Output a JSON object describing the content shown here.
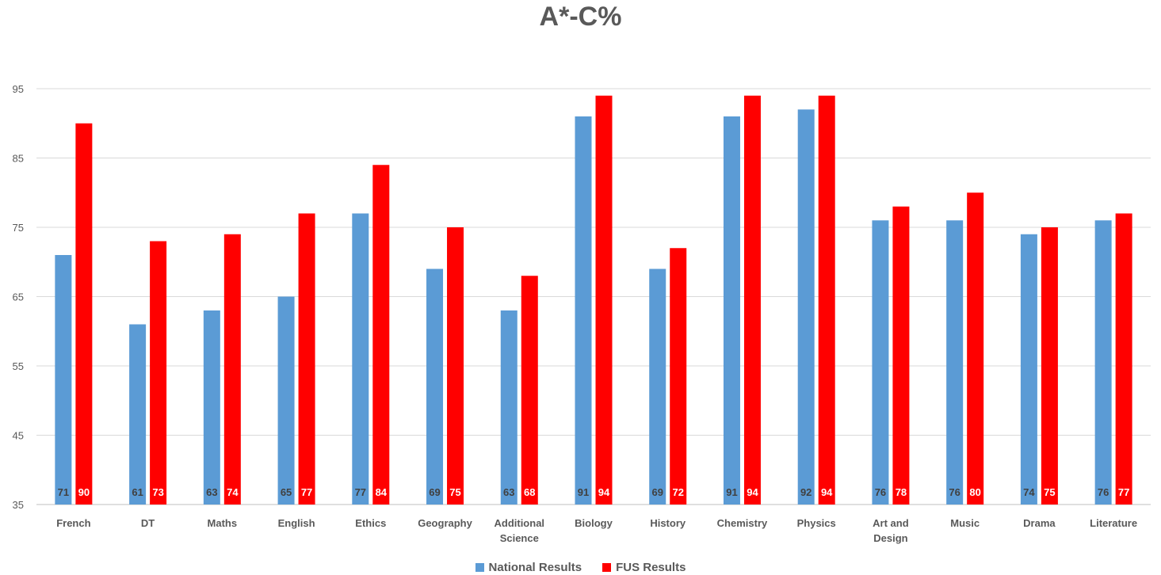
{
  "chart_data": {
    "type": "bar",
    "title": "A*-C%",
    "xlabel": "",
    "ylabel": "",
    "ylim": [
      35,
      95
    ],
    "yticks": [
      "95",
      "85",
      "75",
      "65",
      "55",
      "45",
      "35"
    ],
    "grid": true,
    "legend_position": "bottom",
    "categories": [
      "French",
      "DT",
      "Maths",
      "English",
      "Ethics",
      "Geography",
      "Additional Science",
      "Biology",
      "History",
      "Chemistry",
      "Physics",
      "Art and Design",
      "Music",
      "Drama",
      "Literature"
    ],
    "series": [
      {
        "name": "National Results",
        "color": "#5b9bd5",
        "label_color": "#404040",
        "values": [
          71,
          61,
          63,
          65,
          77,
          69,
          63,
          91,
          69,
          91,
          92,
          76,
          76,
          74,
          76
        ]
      },
      {
        "name": "FUS Results",
        "color": "#ff0000",
        "label_color": "#ffffff",
        "values": [
          90,
          73,
          74,
          77,
          84,
          75,
          68,
          94,
          72,
          94,
          94,
          78,
          80,
          75,
          77
        ]
      }
    ]
  }
}
